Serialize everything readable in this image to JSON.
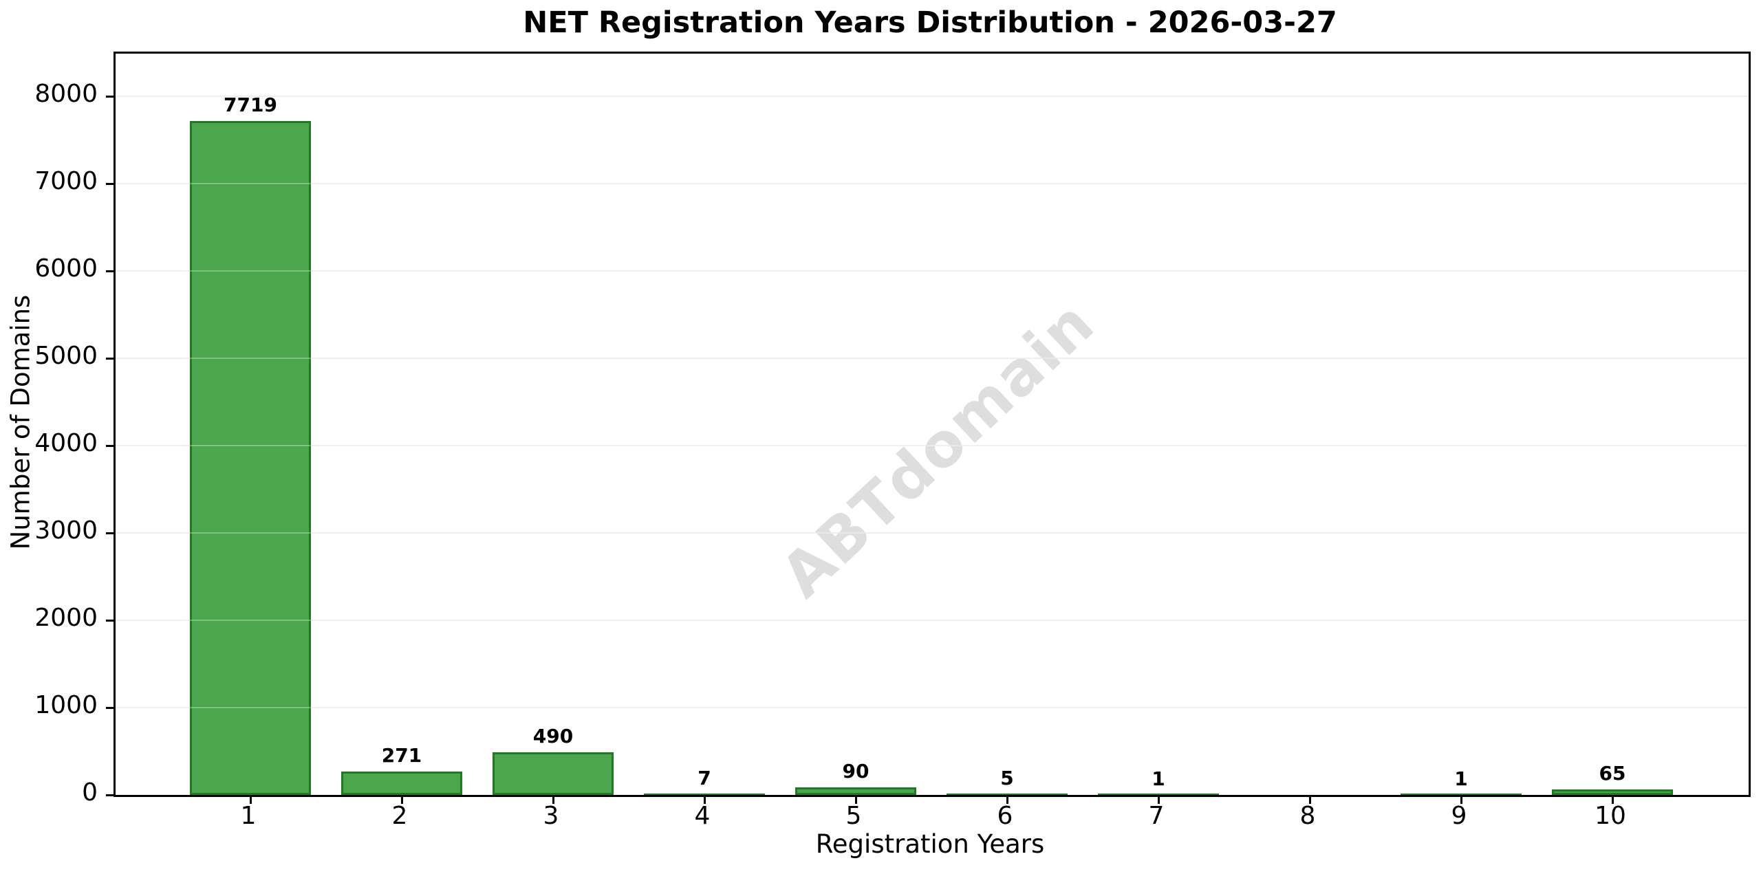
{
  "chart_data": {
    "type": "bar",
    "title": "NET Registration Years Distribution - 2026-03-27",
    "xlabel": "Registration Years",
    "ylabel": "Number of Domains",
    "categories": [
      "1",
      "2",
      "3",
      "4",
      "5",
      "6",
      "7",
      "8",
      "9",
      "10"
    ],
    "values": [
      7719,
      271,
      490,
      7,
      90,
      5,
      1,
      0,
      1,
      65
    ],
    "value_labels": [
      "7719",
      "271",
      "490",
      "7",
      "90",
      "5",
      "1",
      "",
      "1",
      "65"
    ],
    "y_ticks": [
      0,
      1000,
      2000,
      3000,
      4000,
      5000,
      6000,
      7000,
      8000
    ],
    "ylim": [
      0,
      8490
    ],
    "grid": "horizontal",
    "legend": "none",
    "watermark": "ABTdomain",
    "colors": {
      "background": "#FFFFFF",
      "bar_fill": "#4CA64E",
      "bar_edge": "#1E7B21",
      "grid": "#E9E9E9",
      "axis": "#000000",
      "text": "#000000",
      "watermark": "#DEDEDE"
    }
  }
}
